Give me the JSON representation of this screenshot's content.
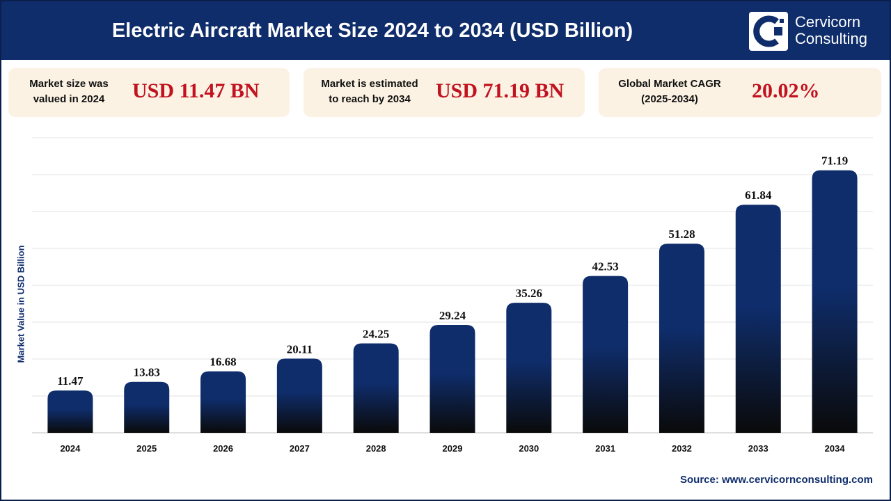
{
  "header": {
    "title": "Electric Aircraft Market Size 2024 to 2034 (USD Billion)",
    "logo_line1": "Cervicorn",
    "logo_line2": "Consulting"
  },
  "cards": [
    {
      "label_line1": "Market size was",
      "label_line2": "valued in 2024",
      "value": "USD 11.47 BN"
    },
    {
      "label_line1": "Market is estimated",
      "label_line2": "to reach by 2034",
      "value": "USD 71.19 BN"
    },
    {
      "label_line1": "Global Market CAGR",
      "label_line2": "(2025-2034)",
      "value": "20.02%"
    }
  ],
  "chart_data": {
    "type": "bar",
    "title": "Electric Aircraft Market Size 2024 to 2034 (USD Billion)",
    "xlabel": "",
    "ylabel": "Market Value in USD Billion",
    "categories": [
      "2024",
      "2025",
      "2026",
      "2027",
      "2028",
      "2029",
      "2030",
      "2031",
      "2032",
      "2033",
      "2034"
    ],
    "values": [
      11.47,
      13.83,
      16.68,
      20.11,
      24.25,
      29.24,
      35.26,
      42.53,
      51.28,
      61.84,
      71.19
    ],
    "ylim": [
      0,
      80
    ],
    "grid": true,
    "bar_color_top": "#0f2d6b",
    "bar_color_bottom": "#0a0a0a"
  },
  "footer": {
    "source": "Source: www.cervicornconsulting.com"
  }
}
